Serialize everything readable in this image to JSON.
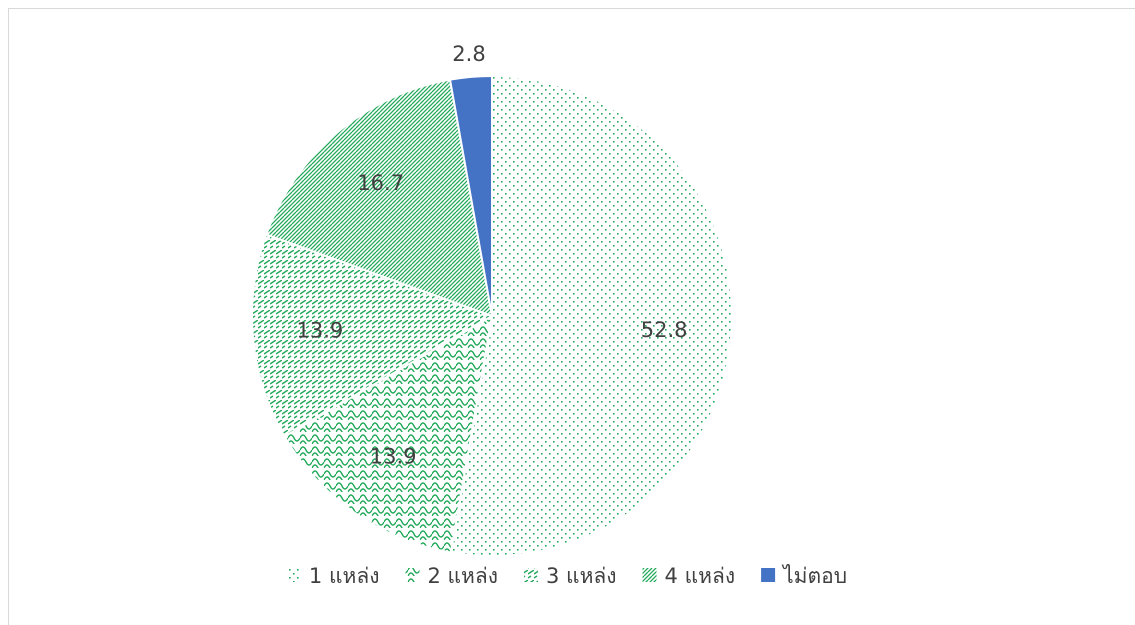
{
  "chart_data": {
    "type": "pie",
    "categories": [
      "1 แหล่ง",
      "2 แหล่ง",
      "3 แหล่ง",
      "4 แหล่ง",
      "ไม่ตอบ"
    ],
    "values": [
      52.8,
      13.9,
      13.9,
      16.7,
      2.8
    ],
    "colors": [
      "#22a85a",
      "#22a85a",
      "#22a85a",
      "#22a85a",
      "#4472c4"
    ],
    "patterns": [
      "dots",
      "waves",
      "dashes",
      "diagonal",
      "solid"
    ],
    "legend": "bottom"
  }
}
